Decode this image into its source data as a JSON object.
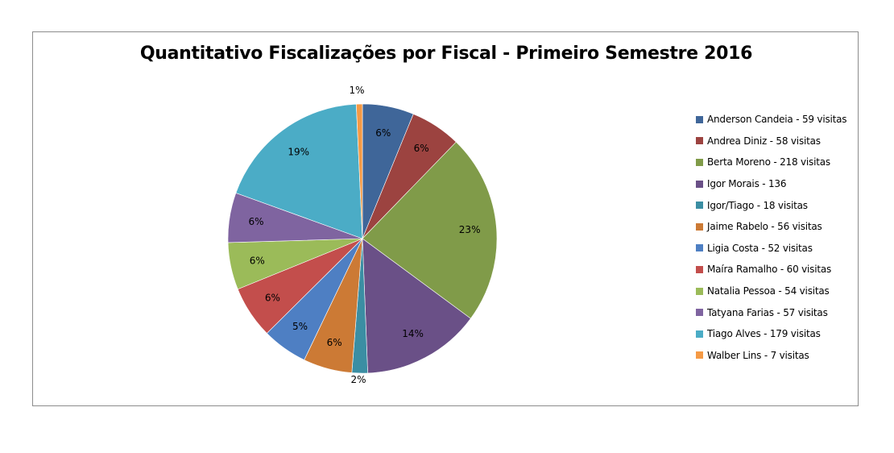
{
  "chart_data": {
    "type": "pie",
    "title": "Quantitativo Fiscalizações por Fiscal - Primeiro Semestre 2016",
    "legend_position": "right",
    "start_angle_deg": 0,
    "direction": "clockwise",
    "slices": [
      {
        "legend": "Anderson Candeia - 59 visitas",
        "value": 59,
        "label": "6%",
        "color": "#3f6699"
      },
      {
        "legend": "Andrea Diniz - 58  visitas",
        "value": 58,
        "label": "6%",
        "color": "#9c4340"
      },
      {
        "legend": "Berta Moreno - 218  visitas",
        "value": 218,
        "label": "23%",
        "color": "#809b49"
      },
      {
        "legend": "Igor Morais - 136",
        "value": 136,
        "label": "14%",
        "color": "#6a5087"
      },
      {
        "legend": "Igor/Tiago - 18 visitas",
        "value": 18,
        "label": "2%",
        "color": "#3b8ea3"
      },
      {
        "legend": "Jaime Rabelo - 56 visitas",
        "value": 56,
        "label": "6%",
        "color": "#cc7a35"
      },
      {
        "legend": "Ligia Costa - 52 visitas",
        "value": 52,
        "label": "5%",
        "color": "#4e7fc3"
      },
      {
        "legend": "Maíra Ramalho - 60  visitas",
        "value": 60,
        "label": "6%",
        "color": "#c34e4c"
      },
      {
        "legend": "Natalia Pessoa - 54 visitas",
        "value": 54,
        "label": "6%",
        "color": "#9bbb59"
      },
      {
        "legend": "Tatyana Farias - 57  visitas",
        "value": 57,
        "label": "6%",
        "color": "#7f64a0"
      },
      {
        "legend": "Tiago Alves - 179  visitas",
        "value": 179,
        "label": "19%",
        "color": "#4bacc6"
      },
      {
        "legend": "Walber Lins - 7 visitas",
        "value": 7,
        "label": "1%",
        "color": "#f59a45"
      }
    ]
  }
}
